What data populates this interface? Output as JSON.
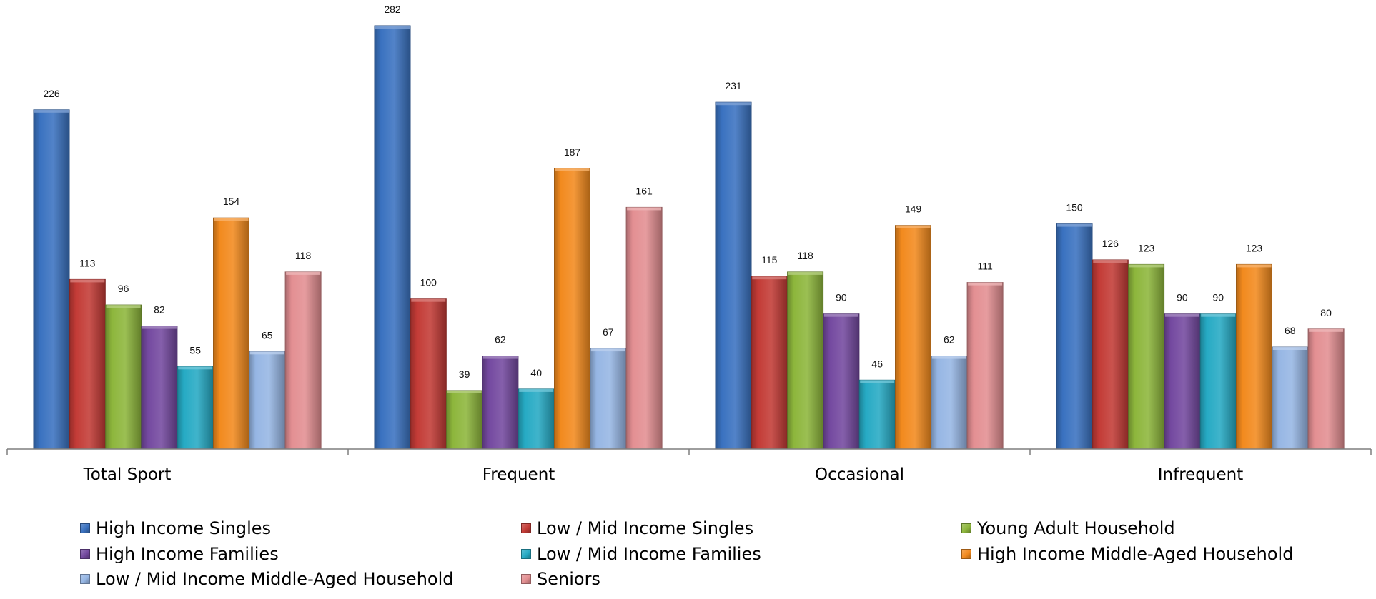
{
  "chart_data": {
    "type": "bar",
    "categories": [
      "Total Sport",
      "Frequent",
      "Occasional",
      "Infrequent"
    ],
    "series": [
      {
        "name": "High Income Singles",
        "color": "#3a72c0",
        "values": [
          226,
          282,
          231,
          150
        ]
      },
      {
        "name": "Low / Mid Income Singles",
        "color": "#c33b36",
        "values": [
          113,
          100,
          115,
          126
        ]
      },
      {
        "name": "Young Adult Household",
        "color": "#8db63c",
        "values": [
          96,
          39,
          118,
          123
        ]
      },
      {
        "name": "High Income Families",
        "color": "#7449a0",
        "values": [
          82,
          62,
          90,
          90
        ]
      },
      {
        "name": "Low / Mid Income Families",
        "color": "#26aac4",
        "values": [
          55,
          40,
          46,
          90
        ]
      },
      {
        "name": "High Income Middle-Aged Household",
        "color": "#f28a1e",
        "values": [
          154,
          187,
          149,
          123
        ]
      },
      {
        "name": "Low / Mid Income Middle-Aged Household",
        "color": "#96b6e4",
        "values": [
          65,
          67,
          62,
          68
        ]
      },
      {
        "name": "Seniors",
        "color": "#e38f92",
        "values": [
          118,
          161,
          111,
          80
        ]
      }
    ],
    "ylim": [
      0,
      282
    ],
    "grid": false,
    "legend_position": "bottom"
  }
}
